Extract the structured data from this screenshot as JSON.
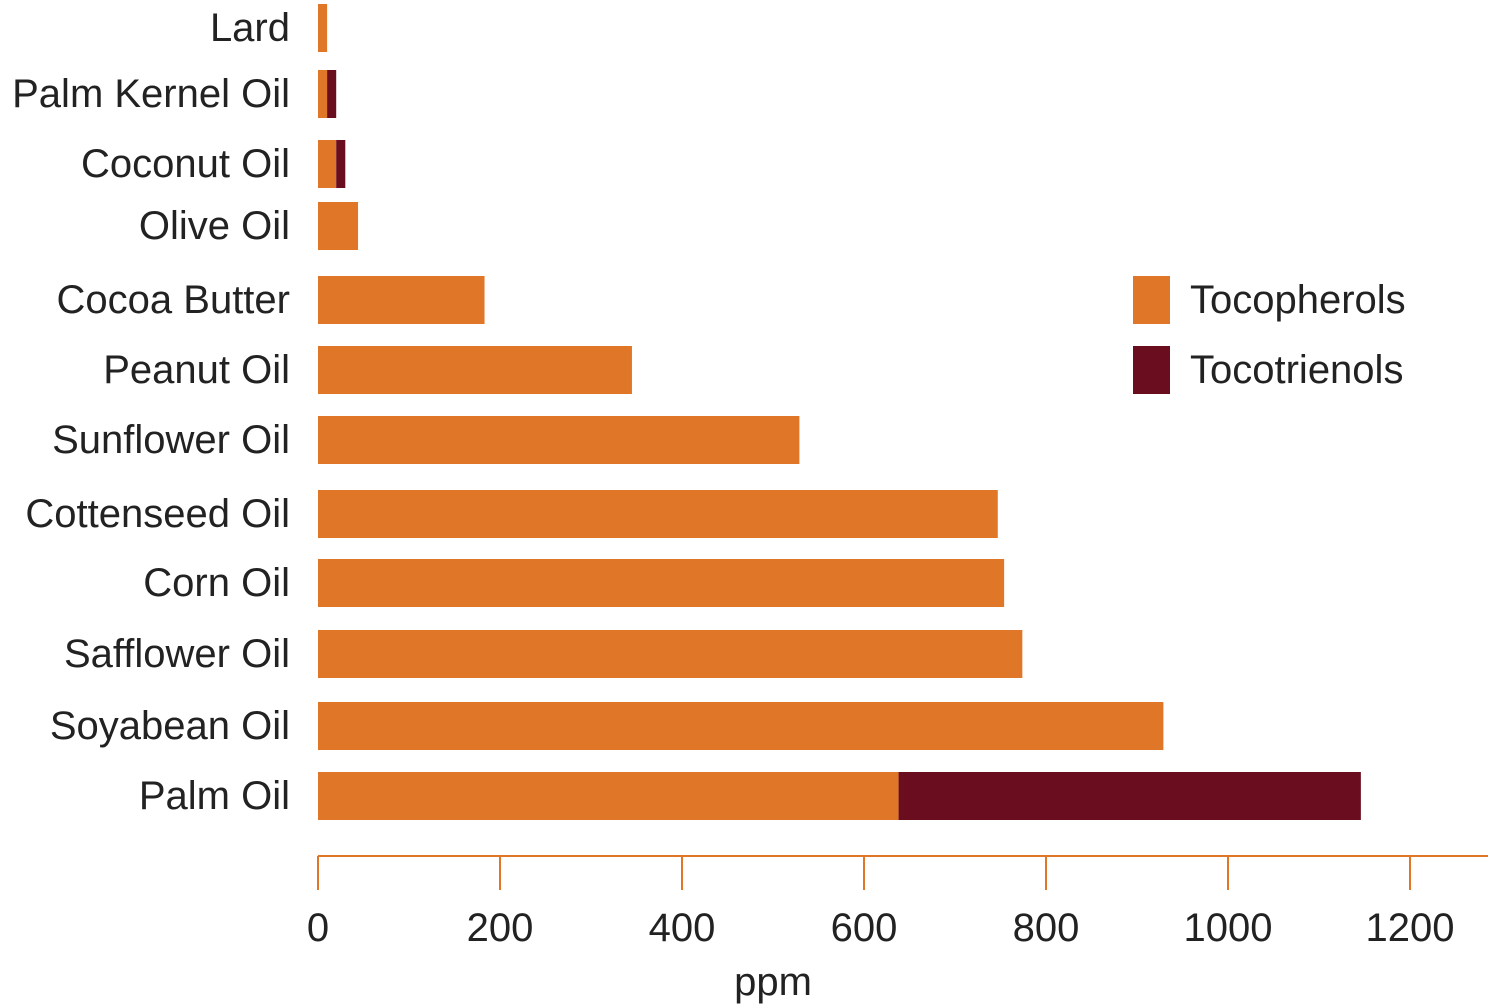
{
  "chart_data": {
    "type": "bar",
    "orientation": "horizontal",
    "stacked": true,
    "categories": [
      "Lard",
      "Palm Kernel Oil",
      "Coconut Oil",
      "Olive Oil",
      "Cocoa Butter",
      "Peanut Oil",
      "Sunflower Oil",
      "Cottenseed Oil",
      "Corn Oil",
      "Safflower Oil",
      "Soyabean Oil",
      "Palm Oil"
    ],
    "series": [
      {
        "name": "Tocopherols",
        "color": "#e07628",
        "values": [
          10,
          10,
          20,
          44,
          183,
          345,
          529,
          747,
          754,
          774,
          929,
          638
        ]
      },
      {
        "name": "Tocotrienols",
        "color": "#6a0d1e",
        "values": [
          0,
          10,
          10,
          0,
          0,
          0,
          0,
          0,
          0,
          0,
          0,
          508
        ]
      }
    ],
    "xlabel": "ppm",
    "ylabel": "",
    "xlim": [
      0,
      1280
    ],
    "xticks": [
      0,
      200,
      400,
      600,
      800,
      1000,
      1200
    ],
    "grid": false,
    "legend_position": "right",
    "axis_color": "#e07628"
  }
}
